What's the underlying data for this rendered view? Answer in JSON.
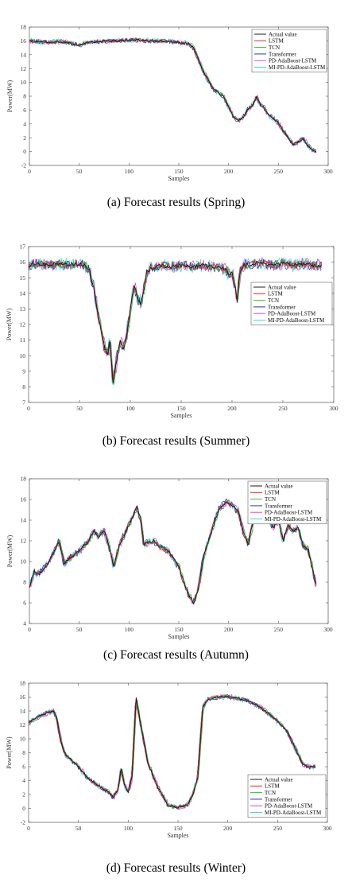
{
  "series_style": [
    {
      "name": "Actual value",
      "color": "#1a1a1a"
    },
    {
      "name": "LSTM",
      "color": "#e8203a"
    },
    {
      "name": "TCN",
      "color": "#22cc22"
    },
    {
      "name": "Transformer",
      "color": "#2a3a9c"
    },
    {
      "name": "PD-AdaBoost-LSTM",
      "color": "#e040e0"
    },
    {
      "name": "MI-PD-AdaBoost-LSTM",
      "color": "#33dddd"
    }
  ],
  "chart_data": [
    {
      "type": "line",
      "caption": "(a) Forecast results (Spring)",
      "xlabel": "Samples",
      "ylabel": "Power(MW)",
      "xlim": [
        0,
        300
      ],
      "ylim": [
        -2,
        18
      ],
      "xticks": [
        0,
        50,
        100,
        150,
        200,
        250,
        300
      ],
      "yticks": [
        -2,
        0,
        2,
        4,
        6,
        8,
        10,
        12,
        14,
        16,
        18
      ],
      "legend": "top-right",
      "series_names": [
        "Actual value",
        "LSTM",
        "TCN",
        "Transformer",
        "PD-AdaBoost-LSTM",
        "MI-PD-AdaBoost-LSTM"
      ],
      "actual": {
        "x": [
          0,
          10,
          20,
          30,
          40,
          50,
          60,
          70,
          80,
          90,
          100,
          110,
          120,
          130,
          140,
          150,
          160,
          165,
          170,
          175,
          180,
          185,
          190,
          195,
          200,
          205,
          210,
          215,
          220,
          225,
          228,
          232,
          236,
          240,
          245,
          250,
          255,
          260,
          265,
          270,
          275,
          280,
          285,
          288
        ],
        "y": [
          16.0,
          15.9,
          15.8,
          15.9,
          15.7,
          15.4,
          15.8,
          15.9,
          16.0,
          16.0,
          16.1,
          16.1,
          16.0,
          16.0,
          15.9,
          15.8,
          15.6,
          15.0,
          13.2,
          11.5,
          10.3,
          9.0,
          8.5,
          8.0,
          6.5,
          5.0,
          4.5,
          5.0,
          6.2,
          6.8,
          7.9,
          6.8,
          6.3,
          5.3,
          4.8,
          4.2,
          3.0,
          2.0,
          1.0,
          1.4,
          1.9,
          0.8,
          0.2,
          0.0
        ]
      }
    },
    {
      "type": "line",
      "caption": "(b) Forecast results (Summer)",
      "xlabel": "Samples",
      "ylabel": "Power(MW)",
      "xlim": [
        0,
        300
      ],
      "ylim": [
        7,
        17
      ],
      "xticks": [
        0,
        50,
        100,
        150,
        200,
        250,
        300
      ],
      "yticks": [
        7,
        8,
        9,
        10,
        11,
        12,
        13,
        14,
        15,
        16,
        17
      ],
      "legend": "right",
      "series_names": [
        "Actual value",
        "LSTM",
        "TCN",
        "Transformer",
        "PD-AdaBoost-LSTM",
        "MI-PD-AdaBoost-LSTM"
      ],
      "actual": {
        "x": [
          0,
          10,
          20,
          30,
          40,
          50,
          55,
          60,
          65,
          70,
          75,
          78,
          80,
          83,
          86,
          90,
          93,
          96,
          100,
          104,
          108,
          110,
          113,
          116,
          120,
          130,
          140,
          150,
          160,
          170,
          180,
          190,
          195,
          198,
          200,
          203,
          205,
          208,
          212,
          220,
          230,
          240,
          250,
          260,
          270,
          280,
          288
        ],
        "y": [
          15.8,
          15.9,
          15.8,
          15.9,
          15.8,
          15.9,
          15.8,
          15.5,
          14.0,
          12.0,
          10.5,
          10.0,
          11.0,
          8.2,
          9.5,
          11.0,
          10.5,
          11.0,
          13.0,
          14.5,
          13.5,
          13.4,
          14.0,
          15.3,
          15.6,
          15.8,
          15.7,
          15.8,
          15.7,
          15.8,
          15.7,
          15.6,
          15.5,
          15.1,
          15.3,
          14.5,
          13.5,
          15.4,
          15.8,
          15.9,
          15.9,
          15.8,
          15.9,
          15.8,
          15.9,
          15.8,
          15.8
        ]
      }
    },
    {
      "type": "line",
      "caption": "(c) Forecast results (Autumn)",
      "xlabel": "Samples",
      "ylabel": "Power(MW)",
      "xlim": [
        0,
        300
      ],
      "ylim": [
        4,
        18
      ],
      "xticks": [
        0,
        50,
        100,
        150,
        200,
        250,
        300
      ],
      "yticks": [
        4,
        6,
        8,
        10,
        12,
        14,
        16,
        18
      ],
      "legend": "top-right",
      "series_names": [
        "Actual value",
        "LSTM",
        "TCN",
        "Transformer",
        "PD-AdaBoost-LSTM",
        "MI-PD-AdaBoost-LSTM"
      ],
      "actual": {
        "x": [
          0,
          5,
          10,
          20,
          30,
          35,
          40,
          50,
          60,
          65,
          70,
          75,
          80,
          85,
          90,
          100,
          108,
          112,
          115,
          118,
          125,
          130,
          140,
          150,
          155,
          160,
          165,
          170,
          175,
          180,
          190,
          198,
          205,
          210,
          215,
          220,
          225,
          230,
          240,
          245,
          250,
          255,
          260,
          265,
          270,
          275,
          280,
          285,
          288
        ],
        "y": [
          7.5,
          9.0,
          8.8,
          10.0,
          12.0,
          9.8,
          10.3,
          11.0,
          12.0,
          13.0,
          12.3,
          13.0,
          11.5,
          9.5,
          11.5,
          13.5,
          15.3,
          14.0,
          11.6,
          11.8,
          12.0,
          11.5,
          11.0,
          9.5,
          8.0,
          6.8,
          6.0,
          7.5,
          10.5,
          12.0,
          15.0,
          15.8,
          15.3,
          14.8,
          12.8,
          11.7,
          14.0,
          14.0,
          14.4,
          13.2,
          14.1,
          12.0,
          13.5,
          12.9,
          13.3,
          11.5,
          11.2,
          9.0,
          7.7
        ]
      }
    },
    {
      "type": "line",
      "caption": "(d) Forecast results (Winter)",
      "xlabel": "Samples",
      "ylabel": "Power(MW)",
      "xlim": [
        0,
        300
      ],
      "ylim": [
        -2,
        18
      ],
      "xticks": [
        0,
        50,
        100,
        150,
        200,
        250,
        300
      ],
      "yticks": [
        -2,
        0,
        2,
        4,
        6,
        8,
        10,
        12,
        14,
        16,
        18
      ],
      "legend": "bottom-right",
      "series_names": [
        "Actual value",
        "LSTM",
        "TCN",
        "Transformer",
        "PD-AdaBoost-LSTM",
        "MI-PD-AdaBoost-LSTM"
      ],
      "actual": {
        "x": [
          0,
          10,
          20,
          25,
          28,
          32,
          36,
          40,
          50,
          60,
          70,
          80,
          85,
          90,
          93,
          96,
          100,
          104,
          108,
          112,
          116,
          120,
          130,
          140,
          150,
          160,
          165,
          170,
          175,
          180,
          190,
          200,
          210,
          220,
          230,
          240,
          250,
          260,
          270,
          275,
          280,
          285,
          288
        ],
        "y": [
          12.3,
          13.2,
          13.8,
          14.0,
          13.2,
          10.0,
          8.0,
          7.3,
          6.0,
          4.3,
          3.3,
          2.4,
          1.6,
          2.8,
          5.8,
          3.6,
          2.2,
          4.6,
          16.0,
          12.5,
          9.5,
          6.5,
          3.0,
          0.5,
          0.1,
          0.5,
          2.0,
          4.5,
          14.5,
          15.7,
          16.0,
          16.1,
          15.8,
          15.5,
          14.8,
          13.8,
          12.5,
          11.0,
          8.0,
          6.5,
          6.0,
          5.9,
          6.0
        ]
      }
    }
  ]
}
